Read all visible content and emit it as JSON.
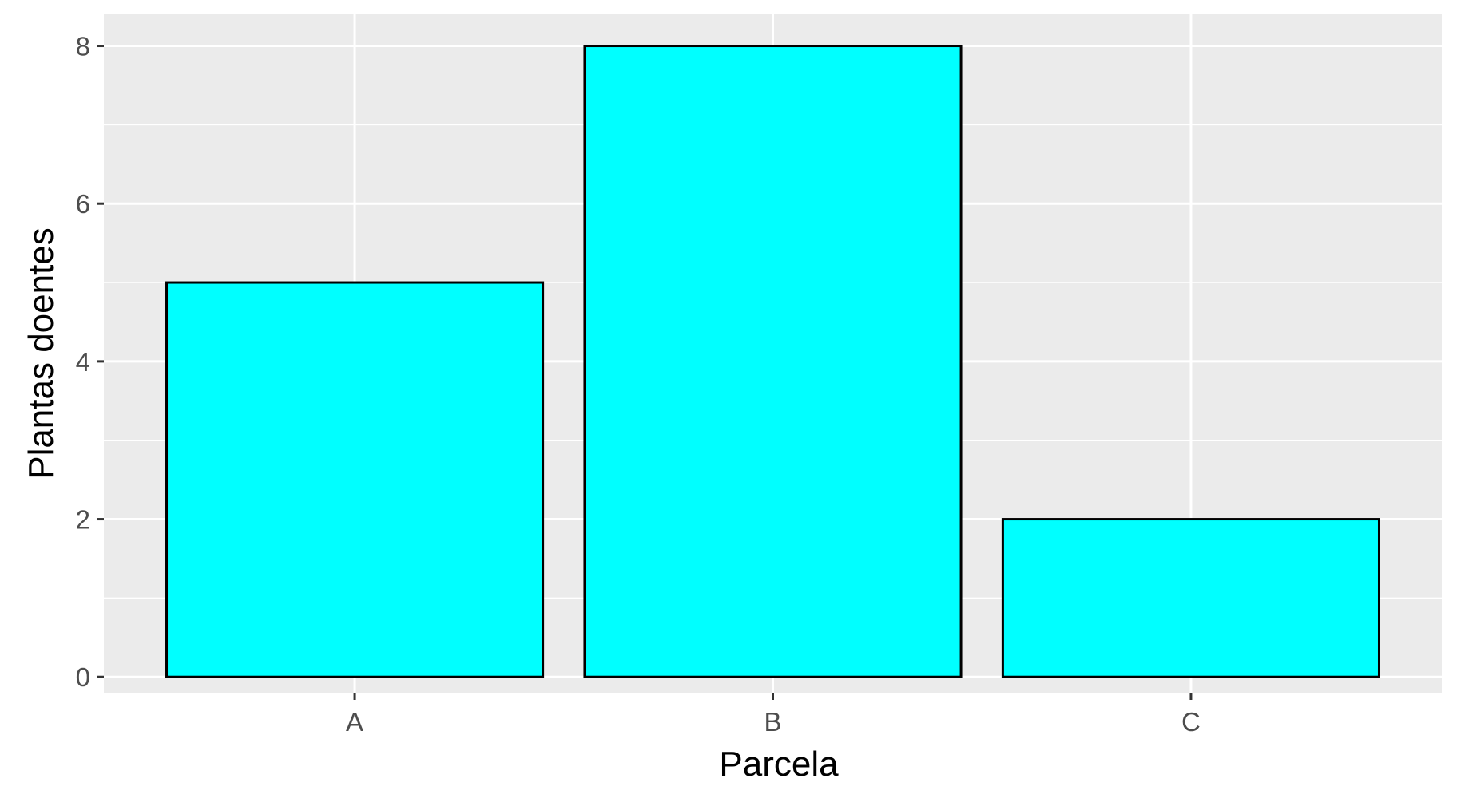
{
  "chart_data": {
    "type": "bar",
    "title": "",
    "xlabel": "Parcela",
    "ylabel": "Plantas doentes",
    "categories": [
      "A",
      "B",
      "C"
    ],
    "values": [
      5,
      8,
      2
    ],
    "ylim": [
      -0.2,
      8.4
    ],
    "yticks": [
      0,
      2,
      4,
      6,
      8
    ],
    "ytick_labels": [
      "0",
      "2",
      "4",
      "6",
      "8"
    ],
    "grid": true,
    "legend": "none",
    "colors": {
      "bar_fill": "#00FFFF",
      "bar_outline": "#000000",
      "panel_background": "#EBEBEB",
      "grid_line": "#FFFFFF",
      "tick_label": "#4D4D4D",
      "tick_mark": "#333333"
    }
  }
}
